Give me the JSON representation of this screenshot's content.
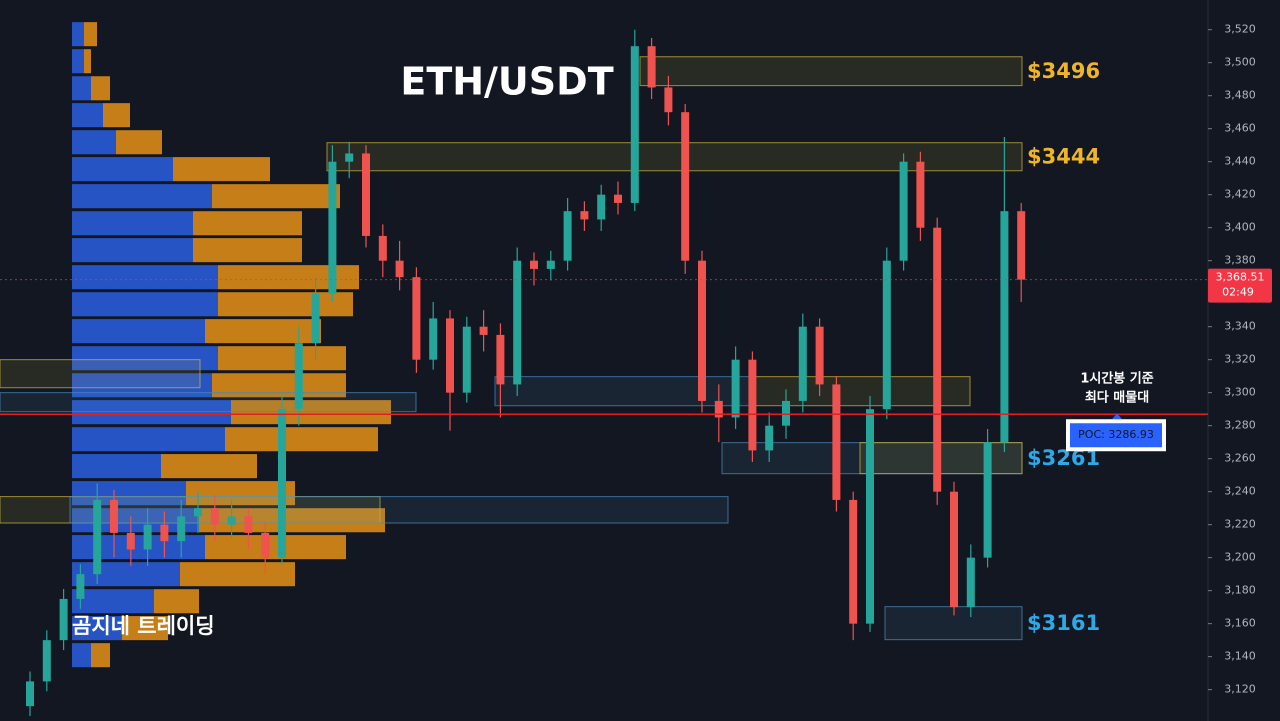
{
  "chart_data": {
    "type": "candlestick",
    "title": "ETH/USDT",
    "watermark": "곰지네 트레이딩",
    "ylim": [
      3101,
      3538
    ],
    "yticks": [
      {
        "value": 3120,
        "label": "3,120"
      },
      {
        "value": 3140,
        "label": "3,140"
      },
      {
        "value": 3160,
        "label": "3,160"
      },
      {
        "value": 3180,
        "label": "3,180"
      },
      {
        "value": 3200,
        "label": "3,200"
      },
      {
        "value": 3220,
        "label": "3,220"
      },
      {
        "value": 3240,
        "label": "3,240"
      },
      {
        "value": 3260,
        "label": "3,260"
      },
      {
        "value": 3280,
        "label": "3,280"
      },
      {
        "value": 3300,
        "label": "3,300"
      },
      {
        "value": 3320,
        "label": "3,320"
      },
      {
        "value": 3340,
        "label": "3,340"
      },
      {
        "value": 3360,
        "label": "3,360"
      },
      {
        "value": 3380,
        "label": "3,380"
      },
      {
        "value": 3400,
        "label": "3,400"
      },
      {
        "value": 3420,
        "label": "3,420"
      },
      {
        "value": 3440,
        "label": "3,440"
      },
      {
        "value": 3460,
        "label": "3,460"
      },
      {
        "value": 3480,
        "label": "3,480"
      },
      {
        "value": 3500,
        "label": "3,500"
      },
      {
        "value": 3520,
        "label": "3,520"
      }
    ],
    "up_color": "#26a69a",
    "down_color": "#ef5350",
    "ohlc": [
      [
        3110,
        3131,
        3104,
        3125
      ],
      [
        3125,
        3156,
        3119,
        3150
      ],
      [
        3150,
        3181,
        3144,
        3175
      ],
      [
        3175,
        3196,
        3169,
        3190
      ],
      [
        3190,
        3245,
        3184,
        3235
      ],
      [
        3235,
        3241,
        3200,
        3215
      ],
      [
        3215,
        3225,
        3195,
        3205
      ],
      [
        3205,
        3230,
        3195,
        3220
      ],
      [
        3220,
        3228,
        3200,
        3210
      ],
      [
        3210,
        3235,
        3200,
        3225
      ],
      [
        3225,
        3240,
        3215,
        3230
      ],
      [
        3230,
        3238,
        3210,
        3220
      ],
      [
        3220,
        3235,
        3212,
        3225
      ],
      [
        3225,
        3230,
        3205,
        3215
      ],
      [
        3215,
        3222,
        3190,
        3200
      ],
      [
        3200,
        3298,
        3196,
        3290
      ],
      [
        3290,
        3340,
        3280,
        3330
      ],
      [
        3330,
        3370,
        3320,
        3360
      ],
      [
        3360,
        3450,
        3355,
        3440
      ],
      [
        3440,
        3452,
        3430,
        3445
      ],
      [
        3445,
        3450,
        3388,
        3395
      ],
      [
        3395,
        3402,
        3370,
        3380
      ],
      [
        3380,
        3392,
        3362,
        3370
      ],
      [
        3370,
        3376,
        3312,
        3320
      ],
      [
        3320,
        3355,
        3314,
        3345
      ],
      [
        3345,
        3350,
        3277,
        3300
      ],
      [
        3300,
        3346,
        3294,
        3340
      ],
      [
        3340,
        3350,
        3325,
        3335
      ],
      [
        3335,
        3342,
        3285,
        3305
      ],
      [
        3305,
        3388,
        3298,
        3380
      ],
      [
        3380,
        3385,
        3365,
        3375
      ],
      [
        3375,
        3386,
        3368,
        3380
      ],
      [
        3380,
        3418,
        3374,
        3410
      ],
      [
        3410,
        3416,
        3398,
        3405
      ],
      [
        3405,
        3426,
        3398,
        3420
      ],
      [
        3420,
        3428,
        3408,
        3415
      ],
      [
        3415,
        3520,
        3410,
        3510
      ],
      [
        3510,
        3515,
        3478,
        3485
      ],
      [
        3485,
        3492,
        3462,
        3470
      ],
      [
        3470,
        3475,
        3372,
        3380
      ],
      [
        3380,
        3386,
        3288,
        3295
      ],
      [
        3295,
        3305,
        3270,
        3285
      ],
      [
        3285,
        3328,
        3278,
        3320
      ],
      [
        3320,
        3325,
        3258,
        3265
      ],
      [
        3265,
        3288,
        3258,
        3280
      ],
      [
        3280,
        3302,
        3272,
        3295
      ],
      [
        3295,
        3348,
        3288,
        3340
      ],
      [
        3340,
        3345,
        3298,
        3305
      ],
      [
        3305,
        3310,
        3228,
        3235
      ],
      [
        3235,
        3240,
        3150,
        3160
      ],
      [
        3160,
        3298,
        3155,
        3290
      ],
      [
        3290,
        3388,
        3284,
        3380
      ],
      [
        3380,
        3445,
        3374,
        3440
      ],
      [
        3440,
        3446,
        3392,
        3400
      ],
      [
        3400,
        3406,
        3232,
        3240
      ],
      [
        3240,
        3246,
        3165,
        3170
      ],
      [
        3170,
        3208,
        3164,
        3200
      ],
      [
        3200,
        3278,
        3194,
        3270
      ],
      [
        3270,
        3455,
        3264,
        3410
      ],
      [
        3410,
        3415,
        3355,
        3368.51
      ]
    ],
    "profile": {
      "levels": [
        3517.6,
        3501.2,
        3484.8,
        3468.5,
        3452.1,
        3435.8,
        3419.4,
        3403.0,
        3386.7,
        3370.3,
        3353.9,
        3337.6,
        3321.2,
        3304.8,
        3288.5,
        3272.1,
        3255.8,
        3239.4,
        3223.0,
        3206.7,
        3190.3,
        3173.9,
        3157.6,
        3141.2
      ],
      "buy": [
        12,
        12,
        19,
        31,
        44,
        101,
        140,
        121,
        121,
        146,
        146,
        133,
        146,
        140,
        159,
        153,
        89,
        114,
        127,
        133,
        108,
        82,
        50,
        19
      ],
      "sell": [
        13,
        7,
        19,
        27,
        46,
        97,
        128,
        109,
        109,
        141,
        135,
        116,
        128,
        134,
        160,
        153,
        96,
        109,
        186,
        141,
        115,
        45,
        46,
        19
      ],
      "buy_color": "#2a5bd7",
      "sell_color": "#d98a17"
    },
    "zones": [
      {
        "low": 3486.1,
        "high": 3503.6,
        "color": "#c9b13a",
        "label": "$3496",
        "label_color": "#f0b429"
      },
      {
        "low": 3434.5,
        "high": 3451.5,
        "color": "#c9b13a",
        "label": "$3444",
        "label_color": "#f0b429"
      },
      {
        "low": 3250.9,
        "high": 3269.7,
        "color": "#4a88b8",
        "label": "$3261",
        "label_color": "#2ea8e6"
      },
      {
        "low": 3150.3,
        "high": 3170.3,
        "color": "#4a88b8",
        "label": "$3161",
        "label_color": "#2ea8e6"
      },
      {
        "low": 3292.1,
        "high": 3309.7,
        "color": "#c9b13a"
      },
      {
        "low": 3292.1,
        "high": 3309.7,
        "color": "#4a88b8"
      },
      {
        "low": 3250.9,
        "high": 3269.7,
        "color": "#c9b13a"
      },
      {
        "low": 3288.5,
        "high": 3300.0,
        "color": "#4a88b8"
      },
      {
        "low": 3303.0,
        "high": 3320.0,
        "color": "#c9b13a"
      },
      {
        "low": 3221.0,
        "high": 3237.0,
        "color": "#c9b13a"
      },
      {
        "low": 3221.0,
        "high": 3237.0,
        "color": "#4a88b8"
      }
    ],
    "last_price": 3368.51,
    "last_price_label": "3,368.51",
    "countdown": "02:49",
    "poc": 3286.93,
    "poc_label": "POC: 3286.93",
    "annotation": [
      "1시간봉 기준",
      "최다 매물대"
    ]
  }
}
